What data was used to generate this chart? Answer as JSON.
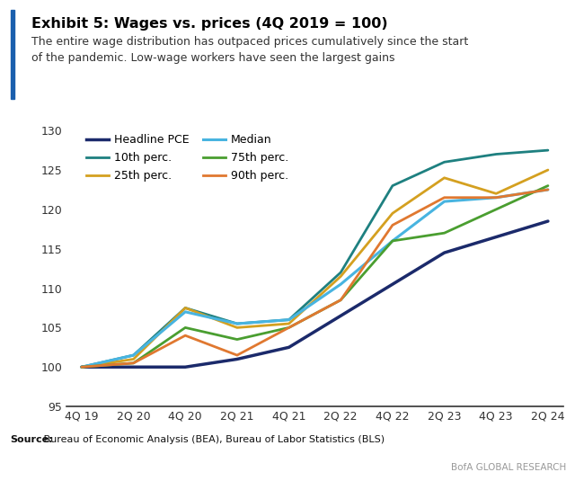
{
  "title_bold": "Exhibit 5: Wages vs. prices (4Q 2019 = 100)",
  "subtitle": "The entire wage distribution has outpaced prices cumulatively since the start\nof the pandemic. Low-wage workers have seen the largest gains",
  "source_bold": "Source:",
  "source_rest": " Bureau of Economic Analysis (BEA), Bureau of Labor Statistics (BLS)",
  "branding": "BofA GLOBAL RESEARCH",
  "x_labels": [
    "4Q 19",
    "2Q 20",
    "4Q 20",
    "2Q 21",
    "4Q 21",
    "2Q 22",
    "4Q 22",
    "2Q 23",
    "4Q 23",
    "2Q 24"
  ],
  "x_ticks": [
    0,
    1,
    2,
    3,
    4,
    5,
    6,
    7,
    8,
    9
  ],
  "ylim": [
    95,
    131
  ],
  "yticks": [
    95,
    100,
    105,
    110,
    115,
    120,
    125,
    130
  ],
  "series": {
    "Headline PCE": {
      "color": "#1b2a6b",
      "linewidth": 2.5,
      "data": [
        100,
        100,
        100,
        101,
        102.5,
        106.5,
        110.5,
        114.5,
        116.5,
        118.5
      ]
    },
    "10th perc.": {
      "color": "#1e8080",
      "linewidth": 2.0,
      "data": [
        100,
        101.5,
        107.5,
        105.5,
        106,
        112,
        123,
        126,
        127,
        127.5
      ]
    },
    "25th perc.": {
      "color": "#d4a020",
      "linewidth": 2.0,
      "data": [
        100,
        101,
        107.5,
        105,
        105.5,
        111.5,
        119.5,
        124,
        122,
        125
      ]
    },
    "Median": {
      "color": "#48b4e0",
      "linewidth": 2.2,
      "data": [
        100,
        101.5,
        107,
        105.5,
        106,
        110.5,
        116,
        121,
        121.5,
        122.5
      ]
    },
    "75th perc.": {
      "color": "#4a9e30",
      "linewidth": 2.0,
      "data": [
        100,
        100.5,
        105,
        103.5,
        105,
        108.5,
        116,
        117,
        120,
        123
      ]
    },
    "90th perc.": {
      "color": "#e07830",
      "linewidth": 2.0,
      "data": [
        100,
        100.5,
        104,
        101.5,
        105,
        108.5,
        118,
        121.5,
        121.5,
        122.5
      ]
    }
  },
  "legend_order": [
    "Headline PCE",
    "10th perc.",
    "25th perc.",
    "Median",
    "75th perc.",
    "90th perc."
  ],
  "background_color": "#ffffff",
  "accent_bar_color": "#1a5fad",
  "title_fontsize": 11.5,
  "subtitle_fontsize": 9.0,
  "axis_fontsize": 9.0,
  "legend_fontsize": 9.0
}
